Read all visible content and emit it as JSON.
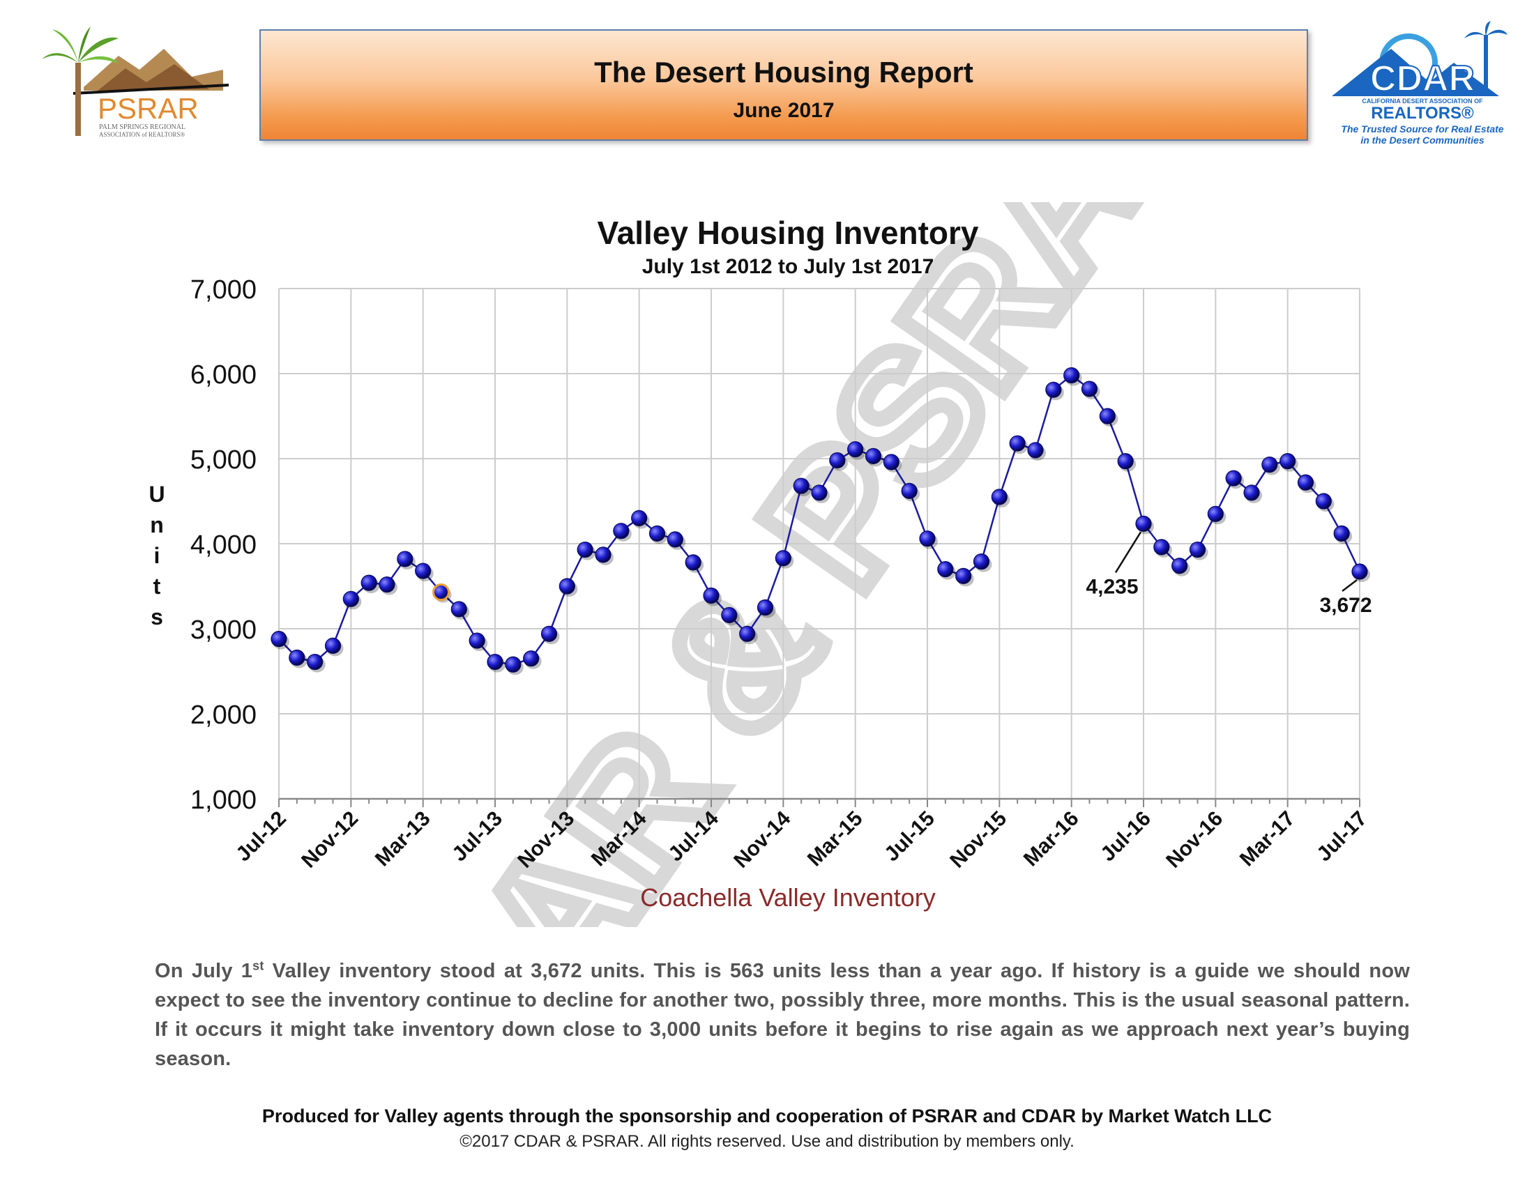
{
  "header": {
    "title": "The Desert Housing Report",
    "subtitle": "June 2017"
  },
  "logos": {
    "psrar": {
      "name": "PSRAR",
      "line1": "PALM SPRINGS REGIONAL",
      "line2": "ASSOCIATION of REALTORS®"
    },
    "cdar": {
      "name": "CDAR",
      "assoc": "CALIFORNIA DESERT ASSOCIATION OF",
      "realtors": "REALTORS®",
      "tagline1": "The Trusted Source for Real Estate",
      "tagline2": "in the Desert Communities"
    }
  },
  "watermark": "CDAR & PSRAR",
  "colors": {
    "line": "#1a1aa0",
    "marker": "#1a1acc",
    "highlight_marker": "#f0a030",
    "xlabel": "#8b2a2a",
    "grid": "#cccccc"
  },
  "chart_data": {
    "type": "line",
    "title": "Valley Housing Inventory",
    "subtitle": "July 1st  2012  to  July 1st  2017",
    "ylabel": "Units",
    "xlabel": "Coachella Valley Inventory",
    "ylim": [
      1000,
      7000
    ],
    "yticks": [
      "7,000",
      "6,000",
      "5,000",
      "4,000",
      "3,000",
      "2,000",
      "1,000"
    ],
    "ytick_values": [
      7000,
      6000,
      5000,
      4000,
      3000,
      2000,
      1000
    ],
    "grid": true,
    "xtick_labels": [
      "Jul-12",
      "Nov-12",
      "Mar-13",
      "Jul-13",
      "Nov-13",
      "Mar-14",
      "Jul-14",
      "Nov-14",
      "Mar-15",
      "Jul-15",
      "Nov-15",
      "Mar-16",
      "Jul-16",
      "Nov-16",
      "Mar-17",
      "Jul-17"
    ],
    "x": [
      "Jul-12",
      "Aug-12",
      "Sep-12",
      "Oct-12",
      "Nov-12",
      "Dec-12",
      "Jan-13",
      "Feb-13",
      "Mar-13",
      "Apr-13",
      "May-13",
      "Jun-13",
      "Jul-13",
      "Aug-13",
      "Sep-13",
      "Oct-13",
      "Nov-13",
      "Dec-13",
      "Jan-14",
      "Feb-14",
      "Mar-14",
      "Apr-14",
      "May-14",
      "Jun-14",
      "Jul-14",
      "Aug-14",
      "Sep-14",
      "Oct-14",
      "Nov-14",
      "Dec-14",
      "Jan-15",
      "Feb-15",
      "Mar-15",
      "Apr-15",
      "May-15",
      "Jun-15",
      "Jul-15",
      "Aug-15",
      "Sep-15",
      "Oct-15",
      "Nov-15",
      "Dec-15",
      "Jan-16",
      "Feb-16",
      "Mar-16",
      "Apr-16",
      "May-16",
      "Jun-16",
      "Jul-16",
      "Aug-16",
      "Sep-16",
      "Oct-16",
      "Nov-16",
      "Dec-16",
      "Jan-17",
      "Feb-17",
      "Mar-17",
      "Apr-17",
      "May-17",
      "Jun-17",
      "Jul-17"
    ],
    "series": [
      {
        "values": [
          2880,
          2660,
          2610,
          2800,
          3350,
          3540,
          3520,
          3820,
          3680,
          3430,
          3230,
          2860,
          2610,
          2580,
          2650,
          2940,
          3500,
          3930,
          3870,
          4150,
          4300,
          4120,
          4050,
          3780,
          3390,
          3160,
          2940,
          3250,
          3830,
          4680,
          4600,
          4980,
          5110,
          5030,
          4960,
          4620,
          4060,
          3700,
          3620,
          3790,
          4550,
          5180,
          5100,
          5810,
          5980,
          5820,
          5500,
          4970,
          4235,
          3960,
          3740,
          3930,
          4350,
          4770,
          4600,
          4930,
          4970,
          4720,
          4500,
          4120,
          3672
        ]
      }
    ],
    "highlight_index": 9,
    "annotations": [
      {
        "text": "4,235",
        "index": 48
      },
      {
        "text": "3,672",
        "index": 60
      }
    ]
  },
  "summary": {
    "p1": "On July 1",
    "sup": "st",
    "p2": " Valley inventory stood at 3,672 units. This is 563 units less than a year ago.  If history is a guide we should now expect to see the inventory continue to decline for another two, possibly three, more months. This is the usual seasonal pattern. If it occurs it might take inventory down close to 3,000 units before it begins to rise again as we approach next year’s buying season."
  },
  "footer": {
    "line1": "Produced for Valley agents through the sponsorship and cooperation of PSRAR and CDAR by Market Watch LLC",
    "line2": "©2017 CDAR & PSRAR.  All rights reserved.  Use and distribution by members only."
  }
}
